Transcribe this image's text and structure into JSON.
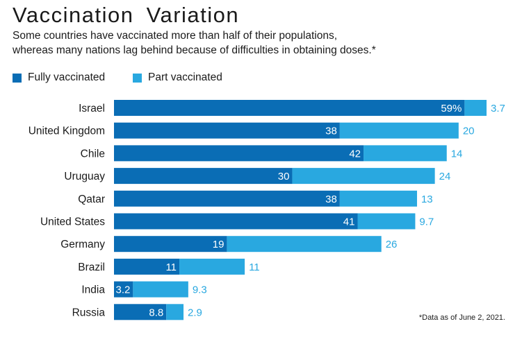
{
  "title": "Vaccination Variation",
  "subtitle_lines": [
    "Some countries have vaccinated more than half of their populations,",
    "whereas many nations lag behind because of difficulties in obtaining doses.*"
  ],
  "footnote": "*Data as of June 2, 2021.",
  "colors": {
    "fully": "#0a6db5",
    "part": "#29a8e0"
  },
  "chart_data": {
    "type": "bar",
    "orientation": "horizontal",
    "stacked": true,
    "categories": [
      "Israel",
      "United Kingdom",
      "Chile",
      "Uruguay",
      "Qatar",
      "United States",
      "Germany",
      "Brazil",
      "India",
      "Russia"
    ],
    "series": [
      {
        "name": "Fully vaccinated",
        "values": [
          59,
          38,
          42,
          30,
          38,
          41,
          19,
          11,
          3.2,
          8.8
        ],
        "labels": [
          "59%",
          "38",
          "42",
          "30",
          "38",
          "41",
          "19",
          "11",
          "3.2",
          "8.8"
        ]
      },
      {
        "name": "Part vaccinated",
        "values": [
          3.7,
          20,
          14,
          24,
          13,
          9.7,
          26,
          11,
          9.3,
          2.9
        ],
        "labels": [
          "3.7",
          "20",
          "14",
          "24",
          "13",
          "9.7",
          "26",
          "11",
          "9.3",
          "2.9"
        ]
      }
    ],
    "xlim": [
      0,
      62.7
    ],
    "grid": false,
    "legend": "top-left"
  }
}
